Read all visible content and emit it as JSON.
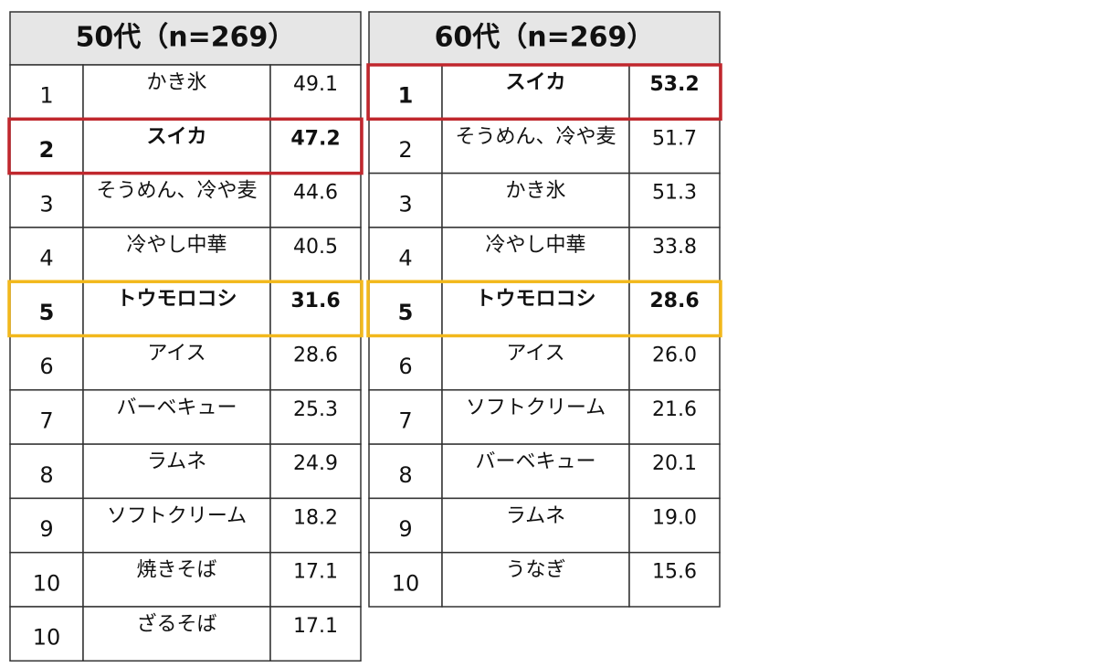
{
  "tables": [
    {
      "title": "50代（n=269）",
      "rows": [
        {
          "rank": "1",
          "item": "かき氷",
          "value": "49.1"
        },
        {
          "rank": "2",
          "item": "スイカ",
          "value": "47.2",
          "border": "#c0272d"
        },
        {
          "rank": "3",
          "item": "そうめん、冷や麦",
          "value": "44.6"
        },
        {
          "rank": "4",
          "item": "冷やし中華",
          "value": "40.5"
        },
        {
          "rank": "5",
          "item": "トウモロコシ",
          "value": "31.6",
          "border": "#f2b81c"
        },
        {
          "rank": "6",
          "item": "アイス",
          "value": "28.6"
        },
        {
          "rank": "7",
          "item": "バーベキュー",
          "value": "25.3"
        },
        {
          "rank": "8",
          "item": "ラムネ",
          "value": "24.9"
        },
        {
          "rank": "9",
          "item": "ソフトクリーム",
          "value": "18.2"
        },
        {
          "rank": "10",
          "item": "焼きそば",
          "value": "17.1"
        },
        {
          "rank": "10",
          "item": "ざるそば",
          "value": "17.1"
        }
      ]
    },
    {
      "title": "60代（n=269）",
      "rows": [
        {
          "rank": "1",
          "item": "スイカ",
          "value": "53.2",
          "border": "#c0272d"
        },
        {
          "rank": "2",
          "item": "そうめん、冷や麦",
          "value": "51.7"
        },
        {
          "rank": "3",
          "item": "かき氷",
          "value": "51.3"
        },
        {
          "rank": "4",
          "item": "冷やし中華",
          "value": "33.8"
        },
        {
          "rank": "5",
          "item": "トウモロコシ",
          "value": "28.6",
          "border": "#f2b81c"
        },
        {
          "rank": "6",
          "item": "アイス",
          "value": "26.0"
        },
        {
          "rank": "7",
          "item": "ソフトクリーム",
          "value": "21.6"
        },
        {
          "rank": "8",
          "item": "バーベキュー",
          "value": "20.1"
        },
        {
          "rank": "9",
          "item": "ラムネ",
          "value": "19.0"
        },
        {
          "rank": "10",
          "item": "うなぎ",
          "value": "15.6"
        }
      ]
    }
  ]
}
